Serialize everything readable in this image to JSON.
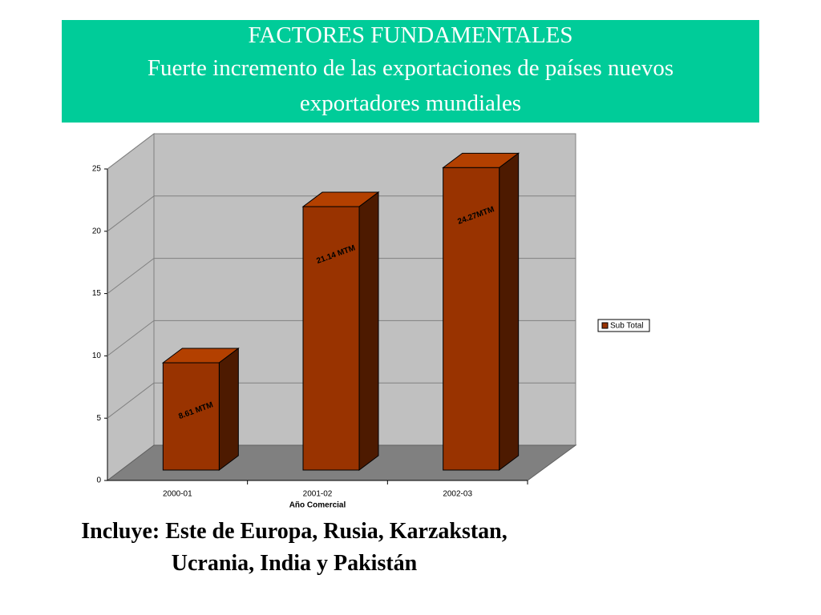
{
  "header": {
    "title": "FACTORES FUNDAMENTALES",
    "subtitle": "Fuerte incremento de las exportaciones de países nuevos exportadores mundiales"
  },
  "chart_data": {
    "type": "bar3d",
    "x_label": "Año Comercial",
    "categories": [
      "2000-01",
      "2001-02",
      "2002-03"
    ],
    "series": [
      {
        "name": "Sub Total",
        "color": "#993300",
        "values": [
          8.61,
          21.14,
          24.27
        ],
        "value_labels": [
          "8.61 MTM",
          "21.14 MTM",
          "24.27MTM"
        ]
      }
    ],
    "ylim": [
      0,
      25
    ],
    "yticks": [
      0,
      5,
      10,
      15,
      20,
      25
    ],
    "grid": true,
    "legend": "right"
  },
  "note": "Incluye: Este de Europa, Rusia, Karzakstan, Ucrania, India y Pakistán"
}
